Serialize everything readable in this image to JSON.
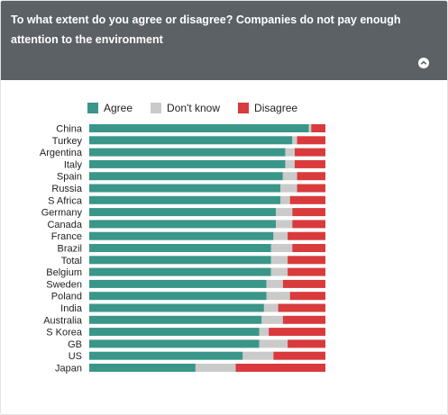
{
  "header": {
    "title": "To what extent do you agree or disagree? Companies do not pay enough attention to the environment",
    "collapse_icon": "chevron-up-circle-icon"
  },
  "colors": {
    "header_bg": "#5c6166",
    "agree": "#3a9688",
    "dont_know": "#cacaca",
    "disagree": "#d93a3c"
  },
  "chart_data": {
    "type": "bar",
    "orientation": "horizontal",
    "stacked": true,
    "percent_stacked": true,
    "legend_position": "top",
    "grid": false,
    "categories": [
      "China",
      "Turkey",
      "Argentina",
      "Italy",
      "Spain",
      "Russia",
      "S Africa",
      "Germany",
      "Canada",
      "France",
      "Brazil",
      "Total",
      "Belgium",
      "Sweden",
      "Poland",
      "India",
      "Australia",
      "S Korea",
      "GB",
      "US",
      "Japan"
    ],
    "series": [
      {
        "name": "Agree",
        "color": "#3a9688",
        "values": [
          93,
          86,
          83,
          83,
          82,
          81,
          81,
          79,
          79,
          78,
          77,
          77,
          77,
          75,
          75,
          74,
          73,
          72,
          72,
          65,
          45
        ]
      },
      {
        "name": "Don't know",
        "color": "#cacaca",
        "values": [
          1,
          2,
          4,
          4,
          6,
          7,
          4,
          7,
          7,
          6,
          9,
          7,
          7,
          7,
          10,
          6,
          9,
          4,
          12,
          13,
          17
        ]
      },
      {
        "name": "Disagree",
        "color": "#d93a3c",
        "values": [
          6,
          12,
          13,
          13,
          12,
          12,
          15,
          14,
          14,
          16,
          14,
          16,
          16,
          18,
          15,
          20,
          18,
          24,
          16,
          22,
          38
        ]
      }
    ]
  }
}
